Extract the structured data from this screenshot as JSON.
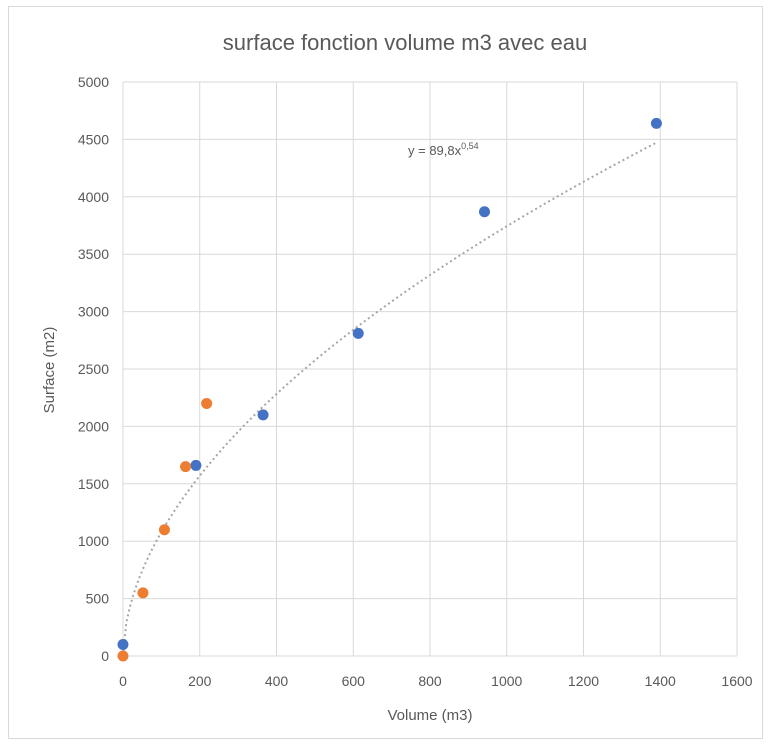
{
  "chart_data": {
    "type": "scatter",
    "title": "surface fonction volume m3 avec eau",
    "xlabel": "Volume (m3)",
    "ylabel": "Surface (m2)",
    "xlim": [
      0,
      1600
    ],
    "ylim": [
      0,
      5000
    ],
    "x_ticks": [
      "0",
      "200",
      "400",
      "600",
      "800",
      "1000",
      "1200",
      "1400",
      "1600"
    ],
    "y_ticks": [
      "0",
      "500",
      "1000",
      "1500",
      "2000",
      "2500",
      "3000",
      "3500",
      "4000",
      "4500",
      "5000"
    ],
    "grid": true,
    "legend": "none",
    "series": [
      {
        "color": "#4472C4",
        "points": [
          {
            "x": 0,
            "y": 100
          },
          {
            "x": 190,
            "y": 1660
          },
          {
            "x": 365,
            "y": 2100
          },
          {
            "x": 613,
            "y": 2810
          },
          {
            "x": 942,
            "y": 3870
          },
          {
            "x": 1390,
            "y": 4640
          }
        ]
      },
      {
        "color": "#ED7D31",
        "points": [
          {
            "x": 0,
            "y": 0
          },
          {
            "x": 52,
            "y": 550
          },
          {
            "x": 108,
            "y": 1100
          },
          {
            "x": 163,
            "y": 1650
          },
          {
            "x": 218,
            "y": 2200
          }
        ]
      }
    ],
    "trendline": {
      "kind": "power",
      "a": 89.8,
      "b": 0.54,
      "x_range": [
        0,
        1390
      ],
      "color": "#A6A6A6",
      "label_prefix": "y = 89,8x",
      "label_exponent": "0,54"
    }
  }
}
